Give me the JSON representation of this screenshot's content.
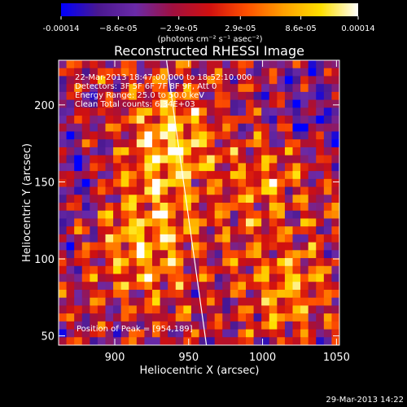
{
  "chart_data": {
    "type": "heatmap",
    "title": "Reconstructed RHESSI Image",
    "xlabel": "Heliocentric X (arcsec)",
    "ylabel": "Heliocentric Y (arcsec)",
    "xlim": [
      862,
      1052
    ],
    "ylim": [
      44,
      229
    ],
    "x_ticks": [
      900,
      950,
      1000,
      1050
    ],
    "y_ticks": [
      50,
      100,
      150,
      200
    ],
    "colorbar": {
      "min": -0.00014,
      "max": 0.00014,
      "tick_values": [
        -0.00014,
        -8.6e-05,
        -2.9e-05,
        2.9e-05,
        8.6e-05,
        0.00014
      ],
      "tick_labels": [
        "-0.00014",
        "−8.6e-05",
        "−2.9e-05",
        "2.9e-05",
        "8.6e-05",
        "0.00014"
      ],
      "unit_label": "(photons cm⁻² s⁻¹ asec⁻²)",
      "colormap": [
        "#0000ff",
        "#4a1890",
        "#6a2aa8",
        "#a01040",
        "#d01010",
        "#ff5000",
        "#ffa000",
        "#ffe000",
        "#ffffff"
      ]
    },
    "annotations": [
      "22-Mar-2013 18:47:00.000 to 18:52:10.000",
      "Detectors: 3F 5F 6F 7F 8F 9F, Att 0",
      "Energy Range: 25.0 to 50.0 keV",
      "Clean     Total counts: 6.34E+03"
    ],
    "peak_label": "Position of Peak = [954,189]",
    "peak": [
      954,
      189
    ],
    "limb_line": [
      [
        935,
        229
      ],
      [
        962,
        44
      ]
    ],
    "footer_timestamp": "29-Mar-2013 14:22"
  }
}
